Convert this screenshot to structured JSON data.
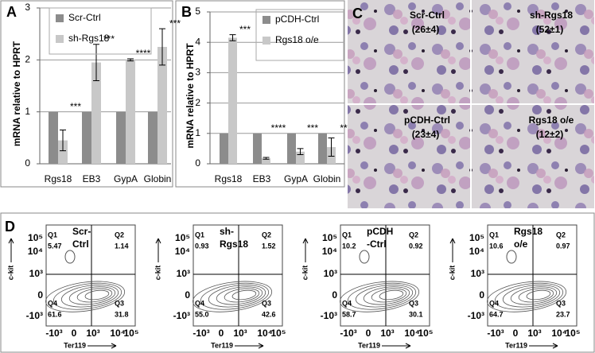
{
  "chart_data": [
    {
      "type": "bar",
      "panel": "A",
      "y_label": "mRNA relative to HPRT",
      "categories": [
        "Rgs18",
        "EB3",
        "GypA",
        "Globin"
      ],
      "series": [
        {
          "name": "Scr-Ctrl",
          "color": "#8c8c8c",
          "values": [
            1,
            1,
            1,
            1
          ]
        },
        {
          "name": "sh-Rgs18",
          "color": "#c8c8c8",
          "values": [
            0.45,
            1.95,
            2.0,
            2.25
          ],
          "errors": [
            0.2,
            0.35,
            0.02,
            0.35
          ],
          "significance": [
            "***",
            "***",
            "****",
            "***"
          ]
        }
      ],
      "ylim": [
        0,
        3
      ],
      "yticks": [
        0,
        1,
        2,
        3
      ],
      "grid": true
    },
    {
      "type": "bar",
      "panel": "B",
      "y_label": "mRNA relative to HPRT",
      "categories": [
        "Rgs18",
        "EB3",
        "GypA",
        "Globin"
      ],
      "series": [
        {
          "name": "pCDH-Ctrl",
          "color": "#8c8c8c",
          "values": [
            1,
            1,
            1,
            1
          ]
        },
        {
          "name": "Rgs18 o/e",
          "color": "#c8c8c8",
          "values": [
            4.15,
            0.18,
            0.4,
            0.55
          ],
          "errors": [
            0.1,
            0.03,
            0.1,
            0.3
          ],
          "significance": [
            "***",
            "****",
            "***",
            "**"
          ]
        }
      ],
      "ylim": [
        0,
        5
      ],
      "yticks": [
        0,
        1,
        2,
        3,
        4,
        5
      ],
      "grid": true
    }
  ],
  "panel_c": {
    "letter": "C",
    "images": [
      {
        "label": "Scr-Ctrl",
        "count": "(26±4)"
      },
      {
        "label": "sh-Rgs18",
        "count": "(52±1)"
      },
      {
        "label": "pCDH-Ctrl",
        "count": "(23±4)"
      },
      {
        "label": "Rgs18 o/e",
        "count": "(12±2)"
      }
    ]
  },
  "panel_d": {
    "letter": "D",
    "y_axis": "c-kit",
    "x_axis": "Ter119",
    "y_ticks": [
      "10⁵",
      "10⁴",
      "10³",
      "0",
      "-10³"
    ],
    "x_ticks": [
      "-10³",
      "0",
      "10³",
      "10⁴",
      "10⁵"
    ],
    "plots": [
      {
        "sample": [
          "Scr-",
          "Ctrl"
        ],
        "q1": [
          "Q1",
          "5.47"
        ],
        "q2": [
          "Q2",
          "1.14"
        ],
        "q3": [
          "Q3",
          "31.8"
        ],
        "q4": [
          "Q4",
          "61.6"
        ]
      },
      {
        "sample": [
          "sh-",
          "Rgs18"
        ],
        "q1": [
          "Q1",
          "0.93"
        ],
        "q2": [
          "Q2",
          "1.52"
        ],
        "q3": [
          "Q3",
          "42.6"
        ],
        "q4": [
          "Q4",
          "55.0"
        ]
      },
      {
        "sample": [
          "pCDH",
          "-Ctrl"
        ],
        "q1": [
          "Q1",
          "10.2"
        ],
        "q2": [
          "Q2",
          "0.92"
        ],
        "q3": [
          "Q3",
          "30.1"
        ],
        "q4": [
          "Q4",
          "58.7"
        ]
      },
      {
        "sample": [
          "Rgs18",
          "o/e"
        ],
        "q1": [
          "Q1",
          "10.6"
        ],
        "q2": [
          "Q2",
          "0.97"
        ],
        "q3": [
          "Q3",
          "23.7"
        ],
        "q4": [
          "Q4",
          "64.7"
        ]
      }
    ]
  }
}
